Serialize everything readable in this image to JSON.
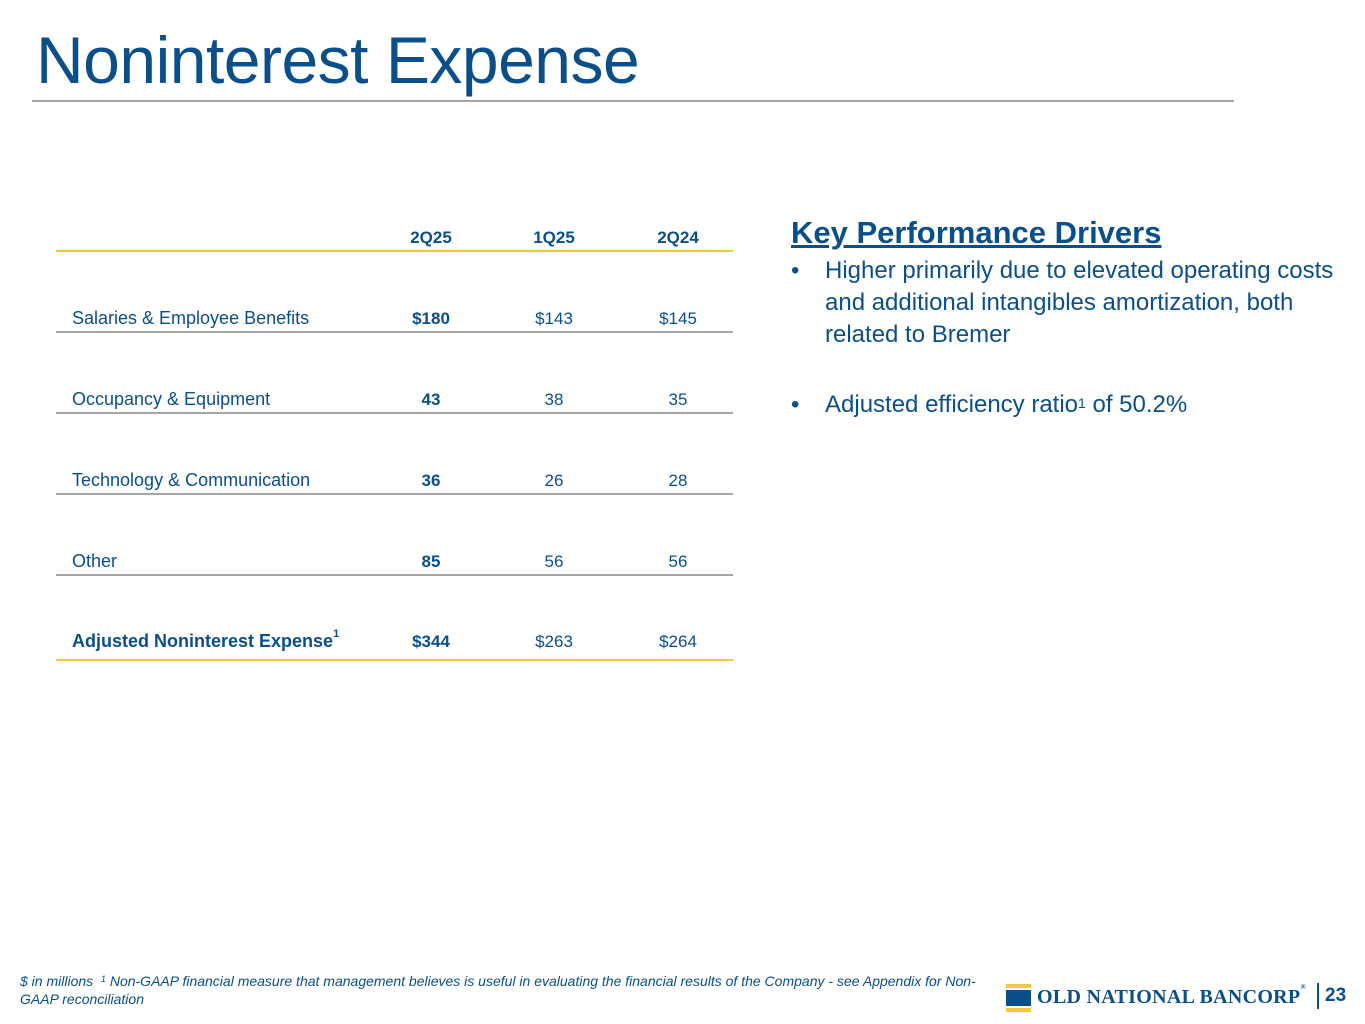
{
  "title": "Noninterest Expense",
  "table": {
    "columns": [
      "2Q25",
      "1Q25",
      "2Q24"
    ],
    "rows": [
      {
        "label": "Salaries & Employee Benefits",
        "values": [
          "$180",
          "$143",
          "$145"
        ]
      },
      {
        "label": "Occupancy & Equipment",
        "values": [
          "43",
          "38",
          "35"
        ]
      },
      {
        "label": "Technology & Communication",
        "values": [
          "36",
          "26",
          "28"
        ]
      },
      {
        "label": "Other",
        "values": [
          "85",
          "56",
          "56"
        ]
      }
    ],
    "total": {
      "label": "Adjusted Noninterest Expense",
      "footnote": "1",
      "values": [
        "$344",
        "$263",
        "$264"
      ]
    }
  },
  "key_drivers": {
    "title": "Key Performance Drivers",
    "bullets": [
      {
        "text": "Higher primarily due to elevated operating costs and additional intangibles amortization, both related to Bremer"
      },
      {
        "text_before": "Adjusted efficiency ratio",
        "footnote": "1",
        "text_after": " of 50.2%"
      }
    ]
  },
  "footer": {
    "units": "$ in millions",
    "footnote_mark": "1",
    "footnote_text": "Non-GAAP financial measure that management believes is useful in evaluating the financial results of the Company - see Appendix for Non-GAAP reconciliation"
  },
  "logo": {
    "text": "OLD NATIONAL BANCORP",
    "mark": "®"
  },
  "page_number": "23",
  "colors": {
    "brand_blue": "#0b4f8a",
    "accent_gold": "#f5c842",
    "rule_gray": "#a6a6a6"
  }
}
